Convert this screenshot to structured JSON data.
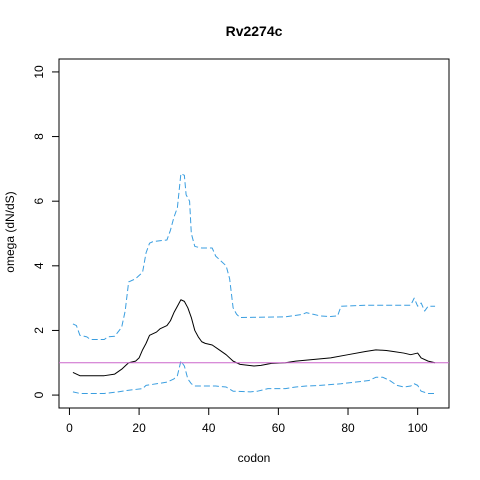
{
  "chart_data": {
    "type": "line",
    "title": "Rv2274c",
    "xlabel": "codon",
    "ylabel": "omega (dN/dS)",
    "xlim": [
      -3,
      109
    ],
    "ylim": [
      -0.4,
      10.4
    ],
    "x_ticks": [
      0,
      20,
      40,
      60,
      80,
      100
    ],
    "y_ticks": [
      0,
      2,
      4,
      6,
      8,
      10
    ],
    "reference_line": {
      "y": 1.0,
      "color": "#cc66cc"
    },
    "grid": false,
    "legend": "none",
    "series": [
      {
        "role": "upper-bound",
        "style": "dashed",
        "color": "#3a9ee0",
        "points": [
          [
            1,
            2.2
          ],
          [
            2,
            2.15
          ],
          [
            3,
            1.85
          ],
          [
            5,
            1.8
          ],
          [
            6,
            1.72
          ],
          [
            10,
            1.72
          ],
          [
            11,
            1.8
          ],
          [
            13,
            1.82
          ],
          [
            15,
            2.1
          ],
          [
            16,
            2.6
          ],
          [
            17,
            3.5
          ],
          [
            19,
            3.6
          ],
          [
            20,
            3.7
          ],
          [
            21,
            3.8
          ],
          [
            22,
            4.4
          ],
          [
            23,
            4.7
          ],
          [
            24,
            4.75
          ],
          [
            28,
            4.8
          ],
          [
            29,
            5.1
          ],
          [
            30,
            5.5
          ],
          [
            31,
            5.8
          ],
          [
            32,
            6.85
          ],
          [
            33,
            6.8
          ],
          [
            33.5,
            6.2
          ],
          [
            34.5,
            6.0
          ],
          [
            35,
            5.0
          ],
          [
            36,
            4.6
          ],
          [
            38,
            4.55
          ],
          [
            41,
            4.55
          ],
          [
            42,
            4.3
          ],
          [
            43,
            4.2
          ],
          [
            45,
            4.0
          ],
          [
            46,
            3.6
          ],
          [
            47,
            2.7
          ],
          [
            48,
            2.5
          ],
          [
            49,
            2.4
          ],
          [
            62,
            2.42
          ],
          [
            67,
            2.5
          ],
          [
            68,
            2.55
          ],
          [
            70,
            2.5
          ],
          [
            72,
            2.45
          ],
          [
            75,
            2.43
          ],
          [
            77,
            2.45
          ],
          [
            78,
            2.75
          ],
          [
            85,
            2.78
          ],
          [
            98,
            2.78
          ],
          [
            99,
            3.0
          ],
          [
            100,
            2.75
          ],
          [
            101,
            2.85
          ],
          [
            102,
            2.6
          ],
          [
            103,
            2.75
          ],
          [
            105,
            2.75
          ]
        ]
      },
      {
        "role": "estimate",
        "style": "solid",
        "color": "#000000",
        "points": [
          [
            1,
            0.7
          ],
          [
            3,
            0.6
          ],
          [
            10,
            0.6
          ],
          [
            13,
            0.65
          ],
          [
            15,
            0.8
          ],
          [
            17,
            1.0
          ],
          [
            19,
            1.05
          ],
          [
            20,
            1.15
          ],
          [
            21,
            1.4
          ],
          [
            22,
            1.6
          ],
          [
            23,
            1.85
          ],
          [
            25,
            1.95
          ],
          [
            26,
            2.05
          ],
          [
            28,
            2.15
          ],
          [
            29,
            2.3
          ],
          [
            30,
            2.55
          ],
          [
            31,
            2.75
          ],
          [
            32,
            2.95
          ],
          [
            33,
            2.9
          ],
          [
            34,
            2.7
          ],
          [
            35,
            2.4
          ],
          [
            36,
            2.0
          ],
          [
            37,
            1.8
          ],
          [
            38,
            1.65
          ],
          [
            39,
            1.6
          ],
          [
            41,
            1.55
          ],
          [
            43,
            1.4
          ],
          [
            45,
            1.25
          ],
          [
            47,
            1.05
          ],
          [
            49,
            0.95
          ],
          [
            53,
            0.9
          ],
          [
            55,
            0.92
          ],
          [
            58,
            0.98
          ],
          [
            62,
            1.0
          ],
          [
            65,
            1.05
          ],
          [
            70,
            1.1
          ],
          [
            75,
            1.15
          ],
          [
            80,
            1.25
          ],
          [
            85,
            1.35
          ],
          [
            88,
            1.4
          ],
          [
            91,
            1.38
          ],
          [
            93,
            1.35
          ],
          [
            96,
            1.3
          ],
          [
            98,
            1.25
          ],
          [
            100,
            1.3
          ],
          [
            101,
            1.15
          ],
          [
            103,
            1.05
          ],
          [
            105,
            1.0
          ]
        ]
      },
      {
        "role": "lower-bound",
        "style": "dashed",
        "color": "#3a9ee0",
        "points": [
          [
            1,
            0.1
          ],
          [
            3,
            0.05
          ],
          [
            10,
            0.05
          ],
          [
            14,
            0.1
          ],
          [
            17,
            0.15
          ],
          [
            21,
            0.2
          ],
          [
            22,
            0.3
          ],
          [
            25,
            0.35
          ],
          [
            28,
            0.4
          ],
          [
            30,
            0.5
          ],
          [
            31,
            0.6
          ],
          [
            32,
            1.05
          ],
          [
            33,
            0.9
          ],
          [
            34,
            0.5
          ],
          [
            35,
            0.35
          ],
          [
            36,
            0.28
          ],
          [
            42,
            0.28
          ],
          [
            45,
            0.25
          ],
          [
            47,
            0.12
          ],
          [
            52,
            0.1
          ],
          [
            54,
            0.12
          ],
          [
            57,
            0.2
          ],
          [
            62,
            0.2
          ],
          [
            65,
            0.25
          ],
          [
            68,
            0.28
          ],
          [
            72,
            0.3
          ],
          [
            78,
            0.35
          ],
          [
            82,
            0.4
          ],
          [
            86,
            0.45
          ],
          [
            88,
            0.55
          ],
          [
            90,
            0.55
          ],
          [
            92,
            0.45
          ],
          [
            94,
            0.3
          ],
          [
            96,
            0.25
          ],
          [
            98,
            0.28
          ],
          [
            99,
            0.35
          ],
          [
            100,
            0.3
          ],
          [
            101,
            0.12
          ],
          [
            103,
            0.05
          ],
          [
            105,
            0.05
          ]
        ]
      }
    ]
  }
}
